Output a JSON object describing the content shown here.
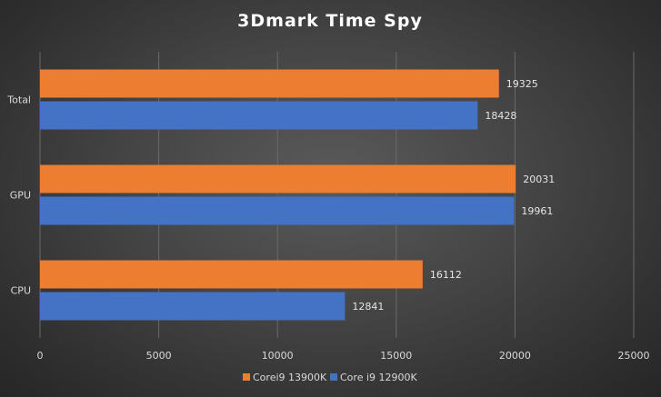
{
  "chart_data": {
    "type": "bar",
    "orientation": "horizontal",
    "title": "3Dmark Time Spy",
    "categories": [
      "Total",
      "GPU",
      "CPU"
    ],
    "series": [
      {
        "name": "Corei9 13900K",
        "color": "#ed7d31",
        "values": [
          19325,
          20031,
          16112
        ]
      },
      {
        "name": "Core i9 12900K",
        "color": "#4472c4",
        "values": [
          18428,
          19961,
          12841
        ]
      }
    ],
    "xlim": [
      0,
      25000
    ],
    "x_ticks": [
      0,
      5000,
      10000,
      15000,
      20000,
      25000
    ],
    "xlabel": "",
    "ylabel": "",
    "grid": true,
    "legend_position": "bottom",
    "data_labels": true
  }
}
